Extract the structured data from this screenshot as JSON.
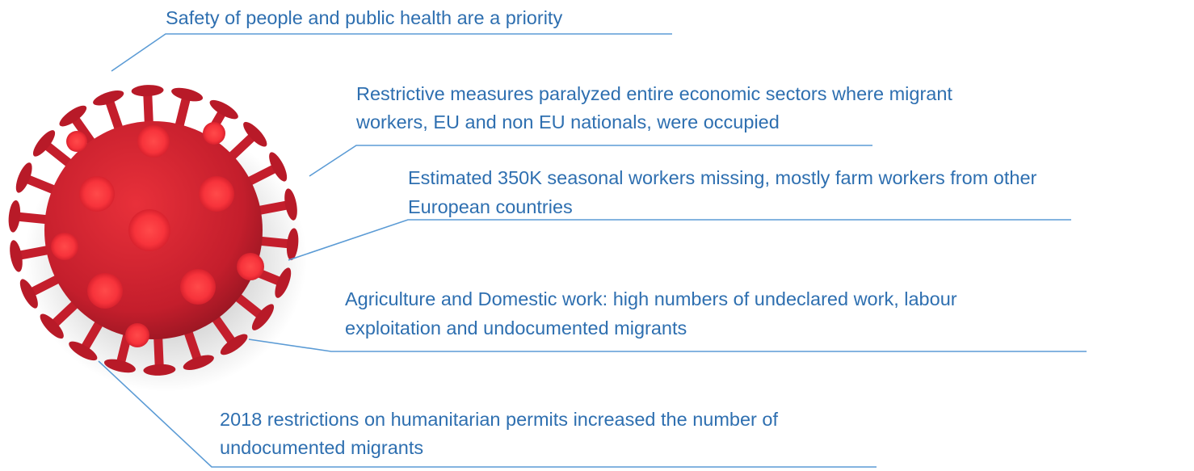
{
  "callouts": [
    {
      "lines": [
        "Safety of people and public health are a priority"
      ]
    },
    {
      "lines": [
        "Restrictive measures paralyzed entire economic sectors where migrant",
        "workers, EU and non EU nationals, were occupied"
      ]
    },
    {
      "lines": [
        "Estimated 350K seasonal workers missing, mostly farm workers from other",
        "European countries"
      ]
    },
    {
      "lines": [
        "Agriculture and Domestic work: high numbers of undeclared work, labour",
        "exploitation and undocumented migrants"
      ]
    },
    {
      "lines": [
        "2018 restrictions on humanitarian permits increased the number of",
        "undocumented migrants"
      ]
    }
  ]
}
